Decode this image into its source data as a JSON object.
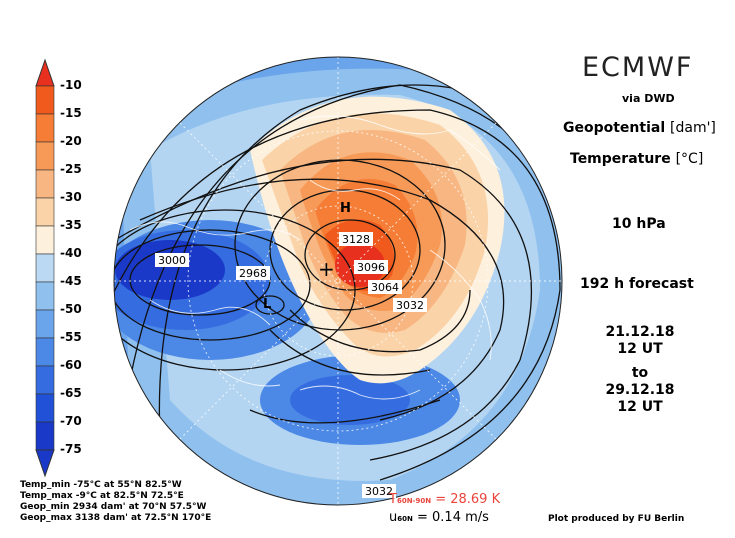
{
  "header": {
    "source": "ECMWF",
    "via": "via DWD",
    "variable_1": "Geopotential",
    "variable_1_unit": "[dam']",
    "variable_2": "Temperature",
    "variable_2_unit": "[°C]",
    "level": "10 hPa",
    "forecast": "192 h forecast",
    "init_date": "21.12.18",
    "init_time": "12 UT",
    "to_word": "to",
    "valid_date": "29.12.18",
    "valid_time": "12 UT"
  },
  "colorbar": {
    "labels": [
      "-10",
      "-15",
      "-20",
      "-25",
      "-30",
      "-35",
      "-40",
      "-45",
      "-50",
      "-55",
      "-60",
      "-65",
      "-70",
      "-75"
    ],
    "colors": [
      "#e8301e",
      "#f05a1c",
      "#f57d35",
      "#f79a58",
      "#f8b782",
      "#fad3a9",
      "#fdf0dc",
      "#bcd9f3",
      "#8fc0ee",
      "#6aa4ea",
      "#4c88e6",
      "#356de0",
      "#2151d6",
      "#1a39c8"
    ]
  },
  "map_labels": {
    "contours": [
      "3000",
      "2968",
      "3128",
      "3096",
      "3064",
      "3032",
      "3032"
    ],
    "high": "H",
    "low": "L"
  },
  "stats": {
    "temp_min": "Temp_min -75°C at 55°N 82.5°W",
    "temp_max": "Temp_max -9°C at 82.5°N 72.5°E",
    "geop_min": "Geop_min 2934 dam' at 70°N 57.5°W",
    "geop_max": "Geop_max 3138 dam' at 72.5°N 170°E"
  },
  "diagnostics": {
    "t_symbol": "T",
    "t_sub": "60N-90N",
    "t_value": "= 28.69 K",
    "u_symbol": "u",
    "u_sub": "60N",
    "u_value": "= 0.14 m/s"
  },
  "credit": "Plot produced by FU Berlin"
}
